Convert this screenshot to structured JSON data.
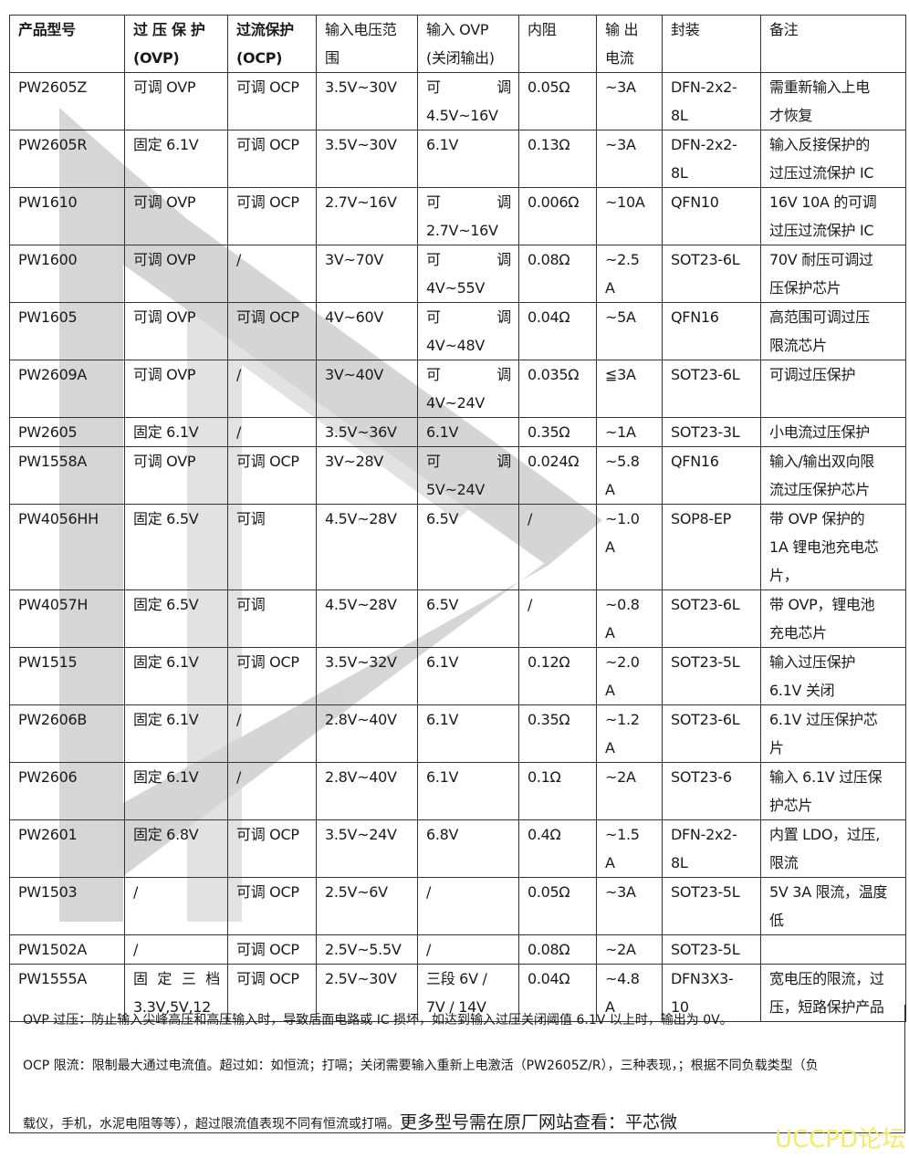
{
  "table": {
    "header": [
      [
        "产品型号"
      ],
      [
        "过 压 保 护",
        "(OVP)"
      ],
      [
        "过流保护",
        "(OCP)"
      ],
      [
        "输入电压范",
        "围"
      ],
      [
        "输入  OVP",
        "(关闭输出)"
      ],
      [
        "内阻"
      ],
      [
        "输  出",
        "电流"
      ],
      [
        "封装"
      ],
      [
        "备注"
      ]
    ],
    "rows": [
      [
        [
          "PW2605Z"
        ],
        [
          "可调 OVP"
        ],
        [
          "可调 OCP"
        ],
        [
          "3.5V~30V"
        ],
        [
          [
            "可",
            "调"
          ],
          "4.5V~16V"
        ],
        [
          "0.05Ω"
        ],
        [
          "~3A"
        ],
        [
          "DFN-2x2-",
          "8L"
        ],
        [
          "需重新输入上电",
          "才恢复"
        ]
      ],
      [
        [
          "PW2605R"
        ],
        [
          "固定 6.1V"
        ],
        [
          "可调 OCP"
        ],
        [
          "3.5V~30V"
        ],
        [
          "6.1V"
        ],
        [
          "0.13Ω"
        ],
        [
          "~3A"
        ],
        [
          "DFN-2x2-",
          "8L"
        ],
        [
          "输入反接保护的",
          "过压过流保护 IC"
        ]
      ],
      [
        [
          "PW1610"
        ],
        [
          "可调 OVP"
        ],
        [
          "可调 OCP"
        ],
        [
          "2.7V~16V"
        ],
        [
          [
            "可",
            "调"
          ],
          "2.7V~16V"
        ],
        [
          "0.006Ω"
        ],
        [
          "~10A"
        ],
        [
          "QFN10"
        ],
        [
          "16V 10A 的可调",
          "过压过流保护 IC"
        ]
      ],
      [
        [
          "PW1600"
        ],
        [
          "可调 OVP"
        ],
        [
          "/"
        ],
        [
          "3V~70V"
        ],
        [
          [
            "可",
            "调"
          ],
          "4V~55V"
        ],
        [
          "0.08Ω"
        ],
        [
          "~2.5",
          "A"
        ],
        [
          "SOT23-6L"
        ],
        [
          "70V 耐压可调过",
          "压保护芯片"
        ]
      ],
      [
        [
          "PW1605"
        ],
        [
          "可调 OVP"
        ],
        [
          "可调 OCP"
        ],
        [
          "4V~60V"
        ],
        [
          [
            "可",
            "调"
          ],
          "4V~48V"
        ],
        [
          "0.04Ω"
        ],
        [
          "~5A"
        ],
        [
          "QFN16"
        ],
        [
          "高范围可调过压",
          "限流芯片"
        ]
      ],
      [
        [
          "PW2609A"
        ],
        [
          "可调 OVP"
        ],
        [
          "/"
        ],
        [
          "3V~40V"
        ],
        [
          [
            "可",
            "调"
          ],
          "4V~24V"
        ],
        [
          "0.035Ω"
        ],
        [
          "≦3A"
        ],
        [
          "SOT23-6L"
        ],
        [
          "可调过压保护"
        ]
      ],
      [
        [
          "PW2605"
        ],
        [
          "固定 6.1V"
        ],
        [
          "/"
        ],
        [
          "3.5V~36V"
        ],
        [
          "6.1V"
        ],
        [
          "0.35Ω"
        ],
        [
          "~1A"
        ],
        [
          "SOT23-3L"
        ],
        [
          "小电流过压保护"
        ]
      ],
      [
        [
          "PW1558A"
        ],
        [
          "可调 OVP"
        ],
        [
          "可调 OCP"
        ],
        [
          "3V~28V"
        ],
        [
          [
            "可",
            "调"
          ],
          "5V~24V"
        ],
        [
          "0.024Ω"
        ],
        [
          "~5.8",
          "A"
        ],
        [
          "QFN16"
        ],
        [
          "输入/输出双向限",
          "流过压保护芯片"
        ]
      ],
      [
        [
          "PW4056HH"
        ],
        [
          "固定 6.5V"
        ],
        [
          "可调"
        ],
        [
          "4.5V~28V"
        ],
        [
          "6.5V"
        ],
        [
          "/"
        ],
        [
          "~1.0",
          "A"
        ],
        [
          "SOP8-EP"
        ],
        [
          "带 OVP 保护的",
          "1A 锂电池充电芯",
          "片，"
        ]
      ],
      [
        [
          "PW4057H"
        ],
        [
          "固定 6.5V"
        ],
        [
          "可调"
        ],
        [
          "4.5V~28V"
        ],
        [
          "6.5V"
        ],
        [
          "/"
        ],
        [
          "~0.8",
          "A"
        ],
        [
          "SOT23-6L"
        ],
        [
          "带 OVP，锂电池",
          "充电芯片"
        ]
      ],
      [
        [
          "PW1515"
        ],
        [
          "固定 6.1V"
        ],
        [
          "可调 OCP"
        ],
        [
          "3.5V~32V"
        ],
        [
          "6.1V"
        ],
        [
          "0.12Ω"
        ],
        [
          "~2.0",
          "A"
        ],
        [
          "SOT23-5L"
        ],
        [
          "输入过压保护",
          "6.1V 关闭"
        ]
      ],
      [
        [
          "PW2606B"
        ],
        [
          "固定 6.1V"
        ],
        [
          "/"
        ],
        [
          "2.8V~40V"
        ],
        [
          "6.1V"
        ],
        [
          "0.35Ω"
        ],
        [
          "~1.2",
          "A"
        ],
        [
          "SOT23-6L"
        ],
        [
          "6.1V 过压保护芯",
          "片"
        ]
      ],
      [
        [
          "PW2606"
        ],
        [
          "固定 6.1V"
        ],
        [
          "/"
        ],
        [
          "2.8V~40V"
        ],
        [
          "6.1V"
        ],
        [
          "0.1Ω"
        ],
        [
          "~2A"
        ],
        [
          "SOT23-6"
        ],
        [
          "输入 6.1V 过压保",
          "护芯片"
        ]
      ],
      [
        [
          "PW2601"
        ],
        [
          "固定 6.8V"
        ],
        [
          "可调 OCP"
        ],
        [
          "3.5V~24V"
        ],
        [
          "6.8V"
        ],
        [
          "0.4Ω"
        ],
        [
          "~1.5",
          "A"
        ],
        [
          "DFN-2x2-",
          "8L"
        ],
        [
          "内置 LDO，过压,",
          "限流"
        ]
      ],
      [
        [
          "PW1503"
        ],
        [
          "/"
        ],
        [
          "可调 OCP"
        ],
        [
          "2.5V~6V"
        ],
        [
          "/"
        ],
        [
          "0.05Ω"
        ],
        [
          "~3A"
        ],
        [
          "SOT23-5L"
        ],
        [
          "5V 3A 限流，温度",
          "低"
        ]
      ],
      [
        [
          "PW1502A"
        ],
        [
          "/"
        ],
        [
          "可调 OCP"
        ],
        [
          "2.5V~5.5V"
        ],
        [
          "/"
        ],
        [
          "0.08Ω"
        ],
        [
          "~2A"
        ],
        [
          "SOT23-5L"
        ],
        []
      ],
      [
        [
          "PW1555A"
        ],
        [
          [
            "固",
            "定",
            "三",
            "档"
          ],
          "3.3V,5V,12"
        ],
        [
          "可调 OCP"
        ],
        [
          "2.5V~30V"
        ],
        [
          "三段 6V /",
          "7V / 14V"
        ],
        [
          "0.04Ω"
        ],
        [
          "~4.8",
          "A"
        ],
        [
          "DFN3X3-",
          "10"
        ],
        [
          "宽电压的限流，过",
          "压，短路保护产品"
        ]
      ]
    ]
  },
  "notes": {
    "ovp": "OVP 过压：防止输入尖峰高压和高压输入时，导致后面电路或 IC 损坏，如达到输入过压关闭阈值 6.1V 以上时，输出为 0V。",
    "ocp": "OCP 限流：限制最大通过电流值。超过如：如恒流；打嗝；关闭需要输入重新上电激活（PW2605Z/R），三种表现，；根据不同负载类型（负",
    "ocp_cont": "载仪，手机，水泥电阻等等），超过限流值表现不同有恒流或打嗝。",
    "more": "更多型号需在原厂网站查看：平芯微"
  },
  "watermark": {
    "brand": "UCCPD论坛",
    "brand_color": "#f3ea6a",
    "shape_color": "#c8c8c8"
  }
}
